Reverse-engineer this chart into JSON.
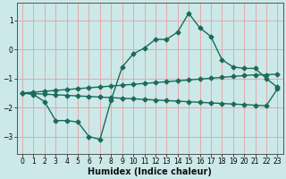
{
  "xlabel": "Humidex (Indice chaleur)",
  "ylabel": "",
  "bg_color": "#cce8e8",
  "grid_color": "#e8a0a0",
  "line_color": "#1a6b5a",
  "xlim": [
    -0.5,
    23.5
  ],
  "ylim": [
    -3.6,
    1.6
  ],
  "xticks": [
    0,
    1,
    2,
    3,
    4,
    5,
    6,
    7,
    8,
    9,
    10,
    11,
    12,
    13,
    14,
    15,
    16,
    17,
    18,
    19,
    20,
    21,
    22,
    23
  ],
  "yticks": [
    -3,
    -2,
    -1,
    0,
    1
  ],
  "wavy_x": [
    0,
    1,
    2,
    3,
    4,
    5,
    6,
    7,
    8,
    9,
    10,
    11,
    12,
    13,
    14,
    15,
    16,
    17,
    18,
    19,
    20,
    21,
    22,
    23
  ],
  "wavy_y": [
    -1.5,
    -1.55,
    -1.8,
    -2.45,
    -2.45,
    -2.5,
    -3.0,
    -3.1,
    -1.75,
    -0.6,
    -0.15,
    0.05,
    0.35,
    0.35,
    0.6,
    1.25,
    0.75,
    0.45,
    -0.35,
    -0.6,
    -0.65,
    -0.65,
    -1.0,
    -1.3
  ],
  "upper_x": [
    0,
    1,
    2,
    3,
    4,
    5,
    6,
    7,
    8,
    9,
    10,
    11,
    12,
    13,
    14,
    15,
    16,
    17,
    18,
    19,
    20,
    21,
    22,
    23
  ],
  "upper_y": [
    -1.5,
    -1.47,
    -1.44,
    -1.41,
    -1.38,
    -1.35,
    -1.32,
    -1.29,
    -1.26,
    -1.23,
    -1.2,
    -1.17,
    -1.14,
    -1.11,
    -1.08,
    -1.05,
    -1.02,
    -0.99,
    -0.96,
    -0.93,
    -0.9,
    -0.87,
    -0.87,
    -0.85
  ],
  "lower_x": [
    0,
    1,
    2,
    3,
    4,
    5,
    6,
    7,
    8,
    9,
    10,
    11,
    12,
    13,
    14,
    15,
    16,
    17,
    18,
    19,
    20,
    21,
    22,
    23
  ],
  "lower_y": [
    -1.5,
    -1.52,
    -1.54,
    -1.56,
    -1.58,
    -1.6,
    -1.62,
    -1.64,
    -1.66,
    -1.68,
    -1.7,
    -1.72,
    -1.74,
    -1.76,
    -1.78,
    -1.8,
    -1.82,
    -1.84,
    -1.86,
    -1.88,
    -1.9,
    -1.92,
    -1.94,
    -1.36
  ],
  "marker": "D",
  "marker_size": 2.5,
  "line_width": 1.0,
  "xlabel_fontsize": 7,
  "tick_fontsize": 5.5,
  "xlabel_fontweight": "bold"
}
